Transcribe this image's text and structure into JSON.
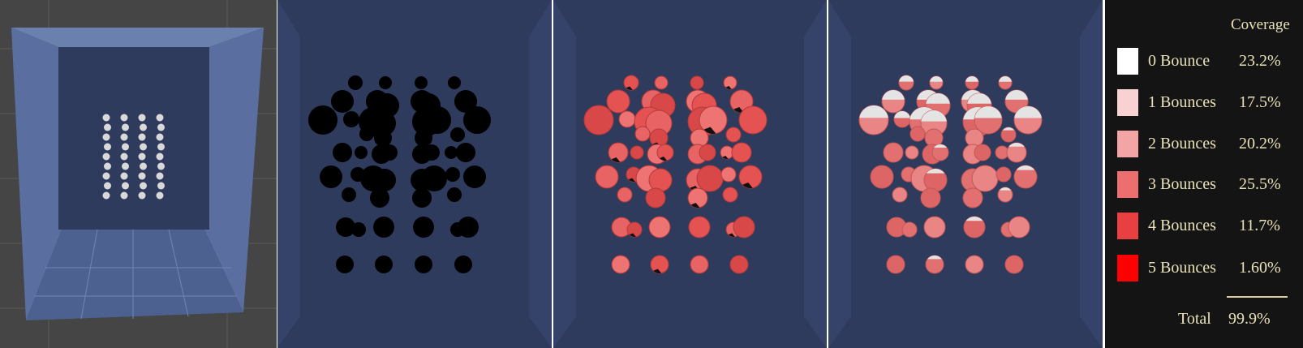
{
  "legend": {
    "header": "Coverage",
    "rows": [
      {
        "label": "0 Bounce",
        "value": "23.2%",
        "color": "#ffffff"
      },
      {
        "label": "1 Bounces",
        "value": "17.5%",
        "color": "#f8d2d2"
      },
      {
        "label": "2 Bounces",
        "value": "20.2%",
        "color": "#f3a5a5"
      },
      {
        "label": "3 Bounces",
        "value": "25.5%",
        "color": "#ec6e6e"
      },
      {
        "label": "4 Bounces",
        "value": "11.7%",
        "color": "#e84040"
      },
      {
        "label": "5 Bounces",
        "value": "1.60%",
        "color": "#ff0000"
      }
    ],
    "total_label": "Total",
    "total_value": "99.9%"
  },
  "colors": {
    "room_background": "#2f3b5c",
    "legend_background": "#141414",
    "legend_text": "#e9e2b8"
  }
}
